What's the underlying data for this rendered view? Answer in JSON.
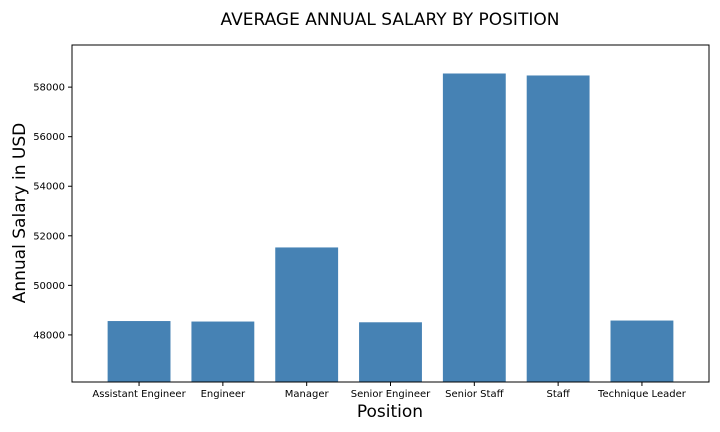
{
  "chart_data": {
    "type": "bar",
    "title": "AVERAGE ANNUAL SALARY BY POSITION",
    "xlabel": "Position",
    "ylabel": "Annual Salary in USD",
    "categories": [
      "Assistant Engineer",
      "Engineer",
      "Manager",
      "Senior Engineer",
      "Senior Staff",
      "Staff",
      "Technique Leader"
    ],
    "values": [
      48560,
      48540,
      51530,
      48510,
      58550,
      58470,
      48580
    ],
    "ylim": [
      46100,
      59700
    ],
    "yticks": [
      48000,
      50000,
      52000,
      54000,
      56000,
      58000
    ],
    "bar_color": "#4682b4",
    "grid": false
  }
}
